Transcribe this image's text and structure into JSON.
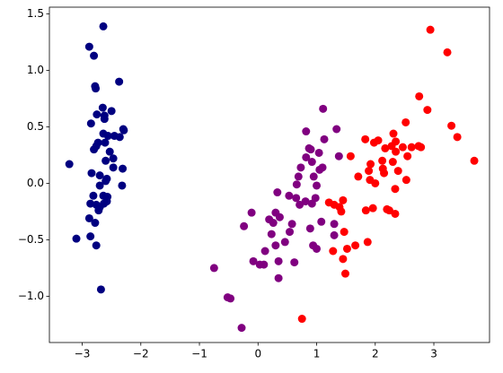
{
  "chart_data": {
    "type": "scatter",
    "xlim": [
      -3.56,
      3.95
    ],
    "ylim": [
      -1.41,
      1.56
    ],
    "xticks": [
      {
        "value": -3,
        "label": "−3"
      },
      {
        "value": -2,
        "label": "−2"
      },
      {
        "value": -1,
        "label": "−1"
      },
      0,
      1,
      2,
      3
    ],
    "yticks": [
      {
        "value": -1.0,
        "label": "−1.0"
      },
      {
        "value": -0.5,
        "label": "−0.5"
      },
      {
        "value": 0,
        "label": "0.0"
      },
      0.5,
      {
        "value": 1.0,
        "label": "1.0"
      },
      1.5
    ],
    "grid": false,
    "series": [
      {
        "color": "#000080",
        "x": [
          -2.64,
          -2.88,
          -2.8,
          -2.78,
          -2.77,
          -2.37,
          -2.75,
          -2.65,
          -2.62,
          -2.3,
          -2.85,
          -2.64,
          -2.56,
          -2.45,
          -2.53,
          -2.47,
          -2.61,
          -2.73,
          -2.8,
          -2.76,
          -2.6,
          -2.47,
          -2.31,
          -2.84,
          -2.7,
          -2.58,
          -2.6,
          -3.22,
          -2.7,
          -2.32,
          -2.81,
          -2.64,
          -2.57,
          -2.58,
          -2.76,
          -2.7,
          -2.63,
          -2.72,
          -2.86,
          -2.88,
          -2.78,
          -2.86,
          -3.1,
          -2.76,
          -2.68,
          -2.29,
          -2.36,
          -2.62,
          -2.5
        ],
        "values": [
          1.39,
          1.21,
          1.13,
          0.86,
          0.84,
          0.9,
          0.61,
          0.67,
          0.57,
          0.48,
          0.53,
          0.44,
          0.42,
          0.42,
          0.28,
          0.22,
          0.36,
          0.36,
          0.3,
          0.33,
          0.2,
          0.14,
          0.13,
          0.09,
          0.07,
          0.04,
          0.02,
          0.17,
          -0.02,
          -0.02,
          -0.11,
          -0.11,
          -0.12,
          -0.16,
          -0.19,
          -0.21,
          -0.18,
          -0.24,
          -0.18,
          -0.31,
          -0.35,
          -0.47,
          -0.49,
          -0.55,
          -0.94,
          0.47,
          0.41,
          0.6,
          0.64
        ]
      },
      {
        "color": "#800080",
        "x": [
          -0.75,
          -0.52,
          -0.47,
          -0.28,
          -0.24,
          -0.11,
          -0.08,
          0.03,
          0.1,
          0.12,
          0.19,
          0.26,
          0.23,
          0.3,
          0.37,
          0.33,
          0.3,
          0.35,
          0.35,
          0.46,
          0.54,
          0.58,
          0.53,
          0.65,
          0.71,
          0.62,
          0.66,
          0.69,
          0.73,
          0.82,
          0.87,
          0.92,
          0.82,
          0.9,
          0.92,
          0.98,
          0.89,
          0.94,
          0.81,
          1.0,
          1.05,
          1.1,
          1.04,
          1.13,
          1.11,
          1.08,
          1.0,
          0.95,
          1.34,
          1.38,
          1.3,
          1.3
        ],
        "values": [
          -0.75,
          -1.01,
          -1.02,
          -1.28,
          -0.38,
          -0.26,
          -0.69,
          -0.72,
          -0.72,
          -0.6,
          -0.32,
          -0.35,
          -0.45,
          -0.26,
          -0.3,
          -0.08,
          -0.55,
          -0.69,
          -0.84,
          -0.52,
          -0.43,
          -0.36,
          -0.11,
          -0.13,
          -0.19,
          -0.7,
          -0.01,
          0.06,
          0.14,
          0.23,
          0.31,
          0.19,
          0.46,
          0.3,
          -0.18,
          -0.13,
          -0.4,
          -0.55,
          -0.16,
          -0.02,
          0.12,
          0.14,
          0.27,
          0.39,
          0.66,
          -0.34,
          -0.58,
          0.06,
          0.48,
          0.24,
          -0.36,
          -0.46
        ]
      },
      {
        "color": "#ff0000",
        "x": [
          0.75,
          1.28,
          1.21,
          1.3,
          1.39,
          1.42,
          1.45,
          1.47,
          1.45,
          1.49,
          1.52,
          1.58,
          1.66,
          1.71,
          1.83,
          1.84,
          1.87,
          1.89,
          1.91,
          1.92,
          1.96,
          1.98,
          2.0,
          2.12,
          2.13,
          2.17,
          2.2,
          2.24,
          2.28,
          2.31,
          2.3,
          2.34,
          2.35,
          2.35,
          2.39,
          2.34,
          2.47,
          2.52,
          2.53,
          2.62,
          2.74,
          2.75,
          2.78,
          2.89,
          2.94,
          3.23,
          3.3,
          3.4,
          3.69,
          2.55,
          2.05,
          2.15
        ],
        "values": [
          -1.2,
          -0.6,
          -0.17,
          -0.19,
          -0.21,
          -0.25,
          -0.15,
          -0.43,
          -0.67,
          -0.8,
          -0.58,
          0.24,
          -0.55,
          0.06,
          0.39,
          -0.24,
          -0.52,
          0.11,
          0.03,
          0.17,
          -0.22,
          0.36,
          0.0,
          0.2,
          0.13,
          0.31,
          -0.23,
          -0.24,
          0.33,
          0.44,
          0.19,
          -0.05,
          0.37,
          0.28,
          0.11,
          -0.27,
          0.32,
          0.54,
          0.03,
          0.32,
          0.33,
          0.77,
          0.32,
          0.65,
          1.36,
          1.16,
          0.51,
          0.41,
          0.2,
          0.24,
          0.38,
          0.09
        ]
      }
    ]
  }
}
